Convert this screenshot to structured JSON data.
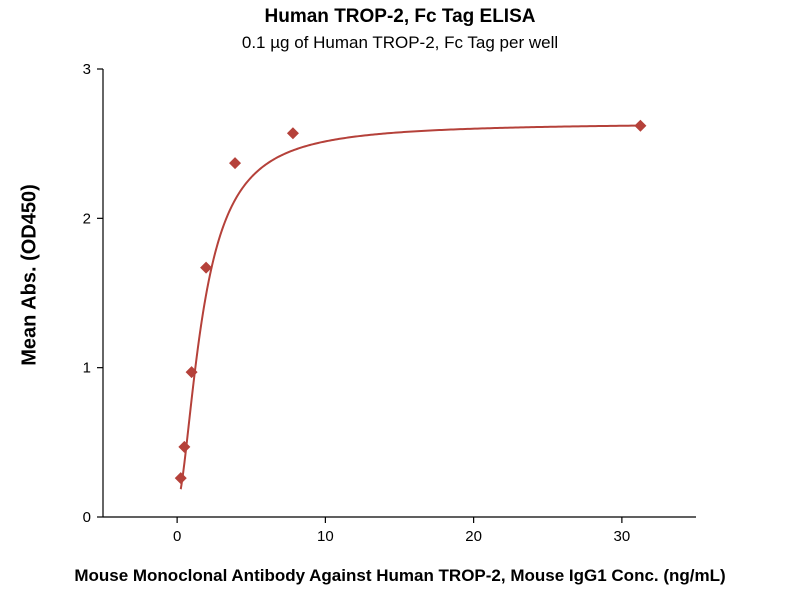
{
  "chart_data": {
    "type": "scatter",
    "title": "Human TROP-2, Fc Tag ELISA",
    "subtitle": "0.1 µg of Human TROP-2, Fc Tag per well",
    "xlabel": "Mouse Monoclonal Antibody Against Human TROP-2, Mouse IgG1 Conc. (ng/mL)",
    "ylabel": "Mean Abs. (OD450)",
    "xlim": [
      -5,
      35
    ],
    "ylim": [
      0,
      3
    ],
    "xticks": [
      0,
      10,
      20,
      30
    ],
    "yticks": [
      0,
      1,
      2,
      3
    ],
    "series": [
      {
        "marker": "diamond",
        "color": "#b5413a",
        "x": [
          0.244,
          0.488,
          0.977,
          1.953,
          3.906,
          7.813,
          31.25
        ],
        "y": [
          0.26,
          0.47,
          0.97,
          1.67,
          2.37,
          2.57,
          2.62
        ]
      }
    ],
    "fit_curve": {
      "type": "4PL",
      "bottom": 0.1,
      "top": 2.64,
      "ec50": 1.75,
      "hill": 1.7,
      "color": "#b5413a"
    },
    "grid": false,
    "legend": "none"
  }
}
